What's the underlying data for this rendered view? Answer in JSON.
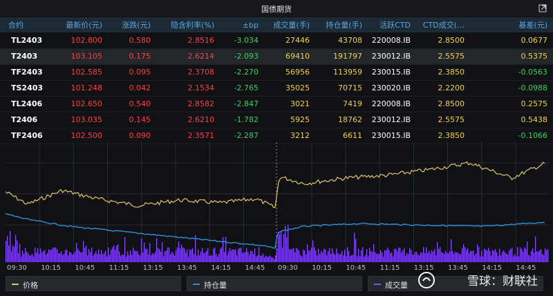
{
  "window": {
    "title": "国债期货"
  },
  "columns": [
    "合约",
    "最新价(元)",
    "涨跌(元)",
    "隐含利率(%)",
    "±bp",
    "成交量(手)",
    "持仓量(手)",
    "活跃CTD",
    "CTD成交(…",
    "基差(元)"
  ],
  "rows": [
    [
      "TL2403",
      "102.800",
      "0.580",
      "2.8516",
      "-3.034",
      "27446",
      "43708",
      "220008.IB",
      "2.8500",
      "0.0677"
    ],
    [
      "T2403",
      "103.105",
      "0.175",
      "2.6214",
      "-2.093",
      "69410",
      "191797",
      "230012.IB",
      "2.5575",
      "0.5375"
    ],
    [
      "TF2403",
      "102.585",
      "0.095",
      "2.3708",
      "-2.270",
      "56956",
      "113959",
      "230015.IB",
      "2.3850",
      "-0.0563"
    ],
    [
      "TS2403",
      "101.248",
      "0.042",
      "2.1534",
      "-2.765",
      "35025",
      "70715",
      "230020.IB",
      "2.2200",
      "-0.0988"
    ],
    [
      "TL2406",
      "102.650",
      "0.540",
      "2.8582",
      "-2.847",
      "3021",
      "7419",
      "220008.IB",
      "2.8500",
      "0.2575"
    ],
    [
      "T2406",
      "103.035",
      "0.145",
      "2.6210",
      "-1.782",
      "5925",
      "18762",
      "230012.IB",
      "2.5575",
      "0.5438"
    ],
    [
      "TF2406",
      "102.500",
      "0.090",
      "2.3571",
      "-2.287",
      "3212",
      "6611",
      "230015.IB",
      "2.3850",
      "-0.1066"
    ]
  ],
  "intraday_chart": {
    "x_ticks": [
      "09:30",
      "10:15",
      "10:45",
      "11:15",
      "13:15",
      "13:45",
      "14:15",
      "14:45",
      "09:30",
      "10:15",
      "10:45",
      "11:15",
      "13:15",
      "13:45",
      "14:15",
      "14:45"
    ],
    "colors": {
      "price": "#e6c46a",
      "open_interest": "#2f8fd8",
      "volume": "#8a4dff",
      "grid": "#2a2d33"
    }
  },
  "legend": {
    "price": "价格",
    "open_interest": "持仓量",
    "volume": "成交量"
  },
  "watermark": {
    "text": "雪球：财联社"
  }
}
